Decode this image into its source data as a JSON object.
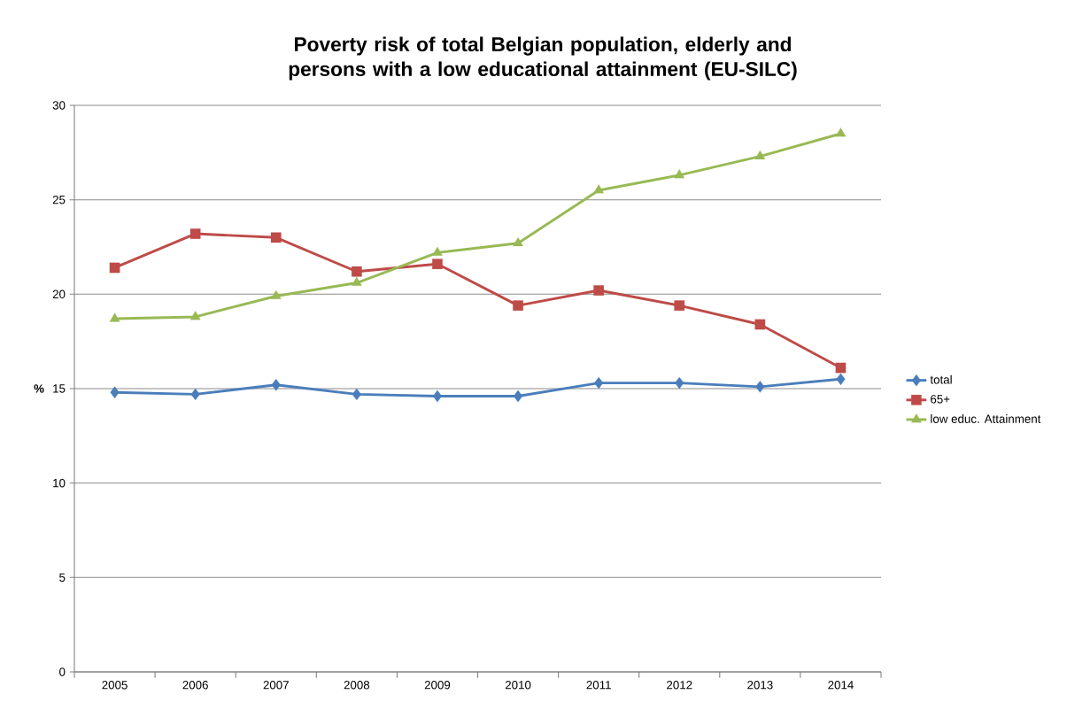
{
  "chart_data": {
    "type": "line",
    "title": "Poverty risk of total Belgian population, elderly and persons with a low educational attainment (EU-SILC)",
    "ylabel": "%",
    "categories": [
      "2005",
      "2006",
      "2007",
      "2008",
      "2009",
      "2010",
      "2011",
      "2012",
      "2013",
      "2014"
    ],
    "series": [
      {
        "name": "total",
        "color": "#4a7ebb",
        "marker": "diamond",
        "values": [
          14.8,
          14.7,
          15.2,
          14.7,
          14.6,
          14.6,
          15.3,
          15.3,
          15.1,
          15.5
        ]
      },
      {
        "name": "65+",
        "color": "#be4b48",
        "marker": "square",
        "values": [
          21.4,
          23.2,
          23.0,
          21.2,
          21.6,
          19.4,
          20.2,
          19.4,
          18.4,
          16.1
        ]
      },
      {
        "name": "low educ. Attainment",
        "color": "#98b954",
        "marker": "triangle",
        "values": [
          18.7,
          18.8,
          19.9,
          20.6,
          22.2,
          22.7,
          25.5,
          26.3,
          27.3,
          28.5
        ]
      }
    ],
    "ylim": [
      0,
      30
    ],
    "yticks": [
      0,
      5,
      10,
      15,
      20,
      25,
      30
    ],
    "grid": "y",
    "legend": "right",
    "line_style": "solid"
  }
}
